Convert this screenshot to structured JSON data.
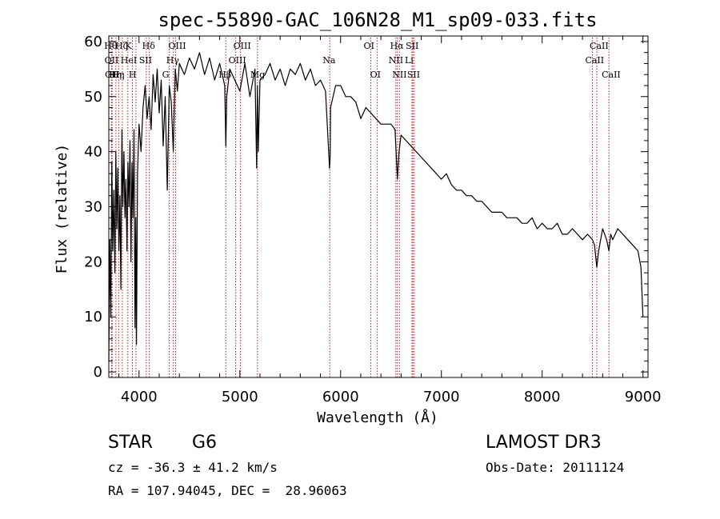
{
  "chart_data": {
    "type": "line",
    "title": "spec-55890-GAC_106N28_M1_sp09-033.fits",
    "xlabel": "Wavelength (Å)",
    "ylabel": "Flux (relative)",
    "xlim": [
      3700,
      9050
    ],
    "ylim": [
      -1,
      61
    ],
    "x_ticks": [
      4000,
      5000,
      6000,
      7000,
      8000,
      9000
    ],
    "y_ticks": [
      0,
      10,
      20,
      30,
      40,
      50,
      60
    ],
    "x_minor_step": 200,
    "y_minor_step": 2,
    "series": [
      {
        "name": "spectrum",
        "x": [
          3700,
          3710,
          3720,
          3730,
          3740,
          3750,
          3760,
          3770,
          3780,
          3790,
          3800,
          3810,
          3820,
          3830,
          3840,
          3850,
          3860,
          3870,
          3880,
          3890,
          3900,
          3910,
          3920,
          3930,
          3940,
          3950,
          3960,
          3968,
          3975,
          3985,
          4000,
          4020,
          4040,
          4060,
          4080,
          4100,
          4120,
          4140,
          4160,
          4180,
          4200,
          4220,
          4240,
          4260,
          4280,
          4300,
          4320,
          4340,
          4360,
          4380,
          4400,
          4450,
          4500,
          4550,
          4600,
          4650,
          4700,
          4750,
          4800,
          4850,
          4861,
          4870,
          4900,
          4950,
          5000,
          5050,
          5100,
          5150,
          5167,
          5175,
          5183,
          5200,
          5250,
          5300,
          5350,
          5400,
          5450,
          5500,
          5550,
          5600,
          5650,
          5700,
          5750,
          5800,
          5850,
          5890,
          5896,
          5900,
          5950,
          6000,
          6050,
          6100,
          6150,
          6200,
          6250,
          6300,
          6350,
          6400,
          6450,
          6500,
          6540,
          6563,
          6580,
          6600,
          6650,
          6700,
          6750,
          6800,
          6850,
          6900,
          6950,
          7000,
          7050,
          7100,
          7150,
          7200,
          7250,
          7300,
          7350,
          7400,
          7450,
          7500,
          7550,
          7600,
          7650,
          7700,
          7750,
          7800,
          7850,
          7900,
          7950,
          8000,
          8050,
          8100,
          8150,
          8200,
          8250,
          8300,
          8350,
          8400,
          8450,
          8500,
          8520,
          8542,
          8560,
          8600,
          8640,
          8662,
          8680,
          8700,
          8750,
          8800,
          8850,
          8900,
          8950,
          8980,
          9000
        ],
        "y": [
          2,
          24,
          10,
          38,
          22,
          33,
          18,
          40,
          26,
          37,
          22,
          32,
          15,
          44,
          30,
          40,
          28,
          35,
          22,
          38,
          30,
          42,
          20,
          38,
          28,
          44,
          8,
          28,
          5,
          36,
          45,
          40,
          48,
          52,
          46,
          50,
          44,
          54,
          49,
          55,
          47,
          53,
          41,
          50,
          33,
          52,
          49,
          40,
          55,
          51,
          56,
          54,
          57,
          55,
          58,
          54,
          57,
          53,
          56,
          52,
          41,
          50,
          55,
          53,
          51,
          56,
          50,
          55,
          37,
          52,
          40,
          53,
          54,
          56,
          53,
          55,
          52,
          55,
          54,
          56,
          53,
          55,
          52,
          53,
          51,
          37,
          39,
          48,
          52,
          52,
          50,
          50,
          49,
          46,
          48,
          47,
          46,
          45,
          45,
          45,
          44,
          35,
          40,
          43,
          42,
          41,
          40,
          39,
          38,
          37,
          36,
          35,
          36,
          34,
          33,
          33,
          32,
          32,
          31,
          31,
          30,
          29,
          29,
          29,
          28,
          28,
          28,
          27,
          27,
          28,
          26,
          27,
          26,
          26,
          27,
          25,
          25,
          26,
          25,
          24,
          25,
          24,
          23,
          19,
          22,
          26,
          24,
          22,
          25,
          24,
          26,
          25,
          24,
          23,
          22,
          19,
          10
        ]
      }
    ],
    "line_labels": [
      {
        "x": 3726,
        "label": "Hθ",
        "row": 1
      },
      {
        "x": 3729,
        "label": "OII",
        "row": 2
      },
      {
        "x": 3733,
        "label": "OII",
        "row": 3
      },
      {
        "x": 3771,
        "label": "Hη",
        "row": 3
      },
      {
        "x": 3798,
        "label": "Hη",
        "row": 3
      },
      {
        "x": 3835,
        "label": "Hζ",
        "row": 1
      },
      {
        "x": 3889,
        "label": "HeI",
        "row": 2
      },
      {
        "x": 3934,
        "label": "K",
        "row": 1
      },
      {
        "x": 3969,
        "label": "H",
        "row": 3
      },
      {
        "x": 4072,
        "label": "SII",
        "row": 2
      },
      {
        "x": 4102,
        "label": "Hδ",
        "row": 1
      },
      {
        "x": 4300,
        "label": "G",
        "row": 3
      },
      {
        "x": 4341,
        "label": "Hγ",
        "row": 2
      },
      {
        "x": 4363,
        "label": "OIII",
        "row": 1
      },
      {
        "x": 4861,
        "label": "Hβ",
        "row": 3
      },
      {
        "x": 4959,
        "label": "OIII",
        "row": 2
      },
      {
        "x": 5007,
        "label": "OIII",
        "row": 1
      },
      {
        "x": 5175,
        "label": "Mg",
        "row": 3
      },
      {
        "x": 5893,
        "label": "Na",
        "row": 2
      },
      {
        "x": 6300,
        "label": "OI",
        "row": 1
      },
      {
        "x": 6364,
        "label": "OI",
        "row": 3
      },
      {
        "x": 6548,
        "label": "NII",
        "row": 2
      },
      {
        "x": 6563,
        "label": "Hα",
        "row": 1
      },
      {
        "x": 6583,
        "label": "NII",
        "row": 3
      },
      {
        "x": 6708,
        "label": "Li",
        "row": 2
      },
      {
        "x": 6717,
        "label": "SII",
        "row": 1
      },
      {
        "x": 6731,
        "label": "SII",
        "row": 3
      },
      {
        "x": 8498,
        "label": "CaII",
        "row": 2
      },
      {
        "x": 8542,
        "label": "CaII",
        "row": 1
      },
      {
        "x": 8662,
        "label": "CaII",
        "row": 3
      }
    ]
  },
  "info": {
    "object_class": "STAR",
    "subclass": "G6",
    "redshift": "cz = -36.3 ± 41.2 km/s",
    "coords": "RA = 107.94045, DEC =  28.96063",
    "survey": "LAMOST DR3",
    "obs_date": "Obs-Date: 20111124"
  },
  "colors": {
    "line": "#000000",
    "marker": "#b22222",
    "axes": "#000000"
  }
}
